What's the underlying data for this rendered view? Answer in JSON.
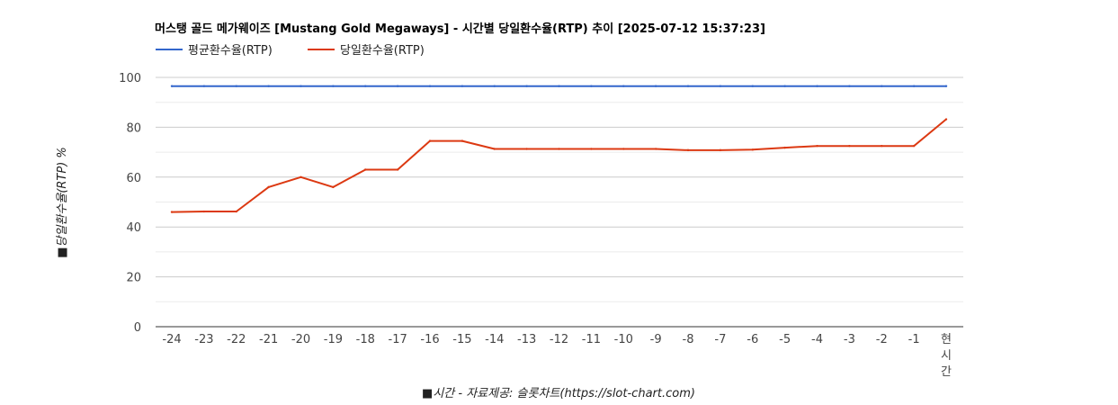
{
  "chart_data": {
    "type": "line",
    "title": "머스탱 골드 메가웨이즈 [Mustang Gold Megaways] - 시간별 당일환수율(RTP) 추이 [2025-07-12 15:37:23]",
    "xlabel": "■시간 - 자료제공: 슬롯차트(https://slot-chart.com)",
    "ylabel": "■당일환수율(RTP) %",
    "ylim": [
      0,
      100
    ],
    "yticks": [
      "0",
      "20",
      "40",
      "60",
      "80",
      "100"
    ],
    "categories": [
      "-24",
      "-23",
      "-22",
      "-21",
      "-20",
      "-19",
      "-18",
      "-17",
      "-16",
      "-15",
      "-14",
      "-13",
      "-12",
      "-11",
      "-10",
      "-9",
      "-8",
      "-7",
      "-6",
      "-5",
      "-4",
      "-3",
      "-2",
      "-1",
      "현시간"
    ],
    "series": [
      {
        "name": "평균환수율(RTP)",
        "color": "#3366cc",
        "values": [
          96.5,
          96.5,
          96.5,
          96.5,
          96.5,
          96.5,
          96.5,
          96.5,
          96.5,
          96.5,
          96.5,
          96.5,
          96.5,
          96.5,
          96.5,
          96.5,
          96.5,
          96.5,
          96.5,
          96.5,
          96.5,
          96.5,
          96.5,
          96.5,
          96.5
        ]
      },
      {
        "name": "당일환수율(RTP)",
        "color": "#dc3912",
        "values": [
          46,
          46.2,
          46.2,
          56,
          60,
          56,
          63,
          63,
          74.5,
          74.5,
          71.3,
          71.3,
          71.3,
          71.3,
          71.3,
          71.3,
          70.8,
          70.8,
          71,
          71.8,
          72.5,
          72.5,
          72.5,
          72.5,
          83.2
        ]
      }
    ],
    "grid": true,
    "legend": "top-left"
  }
}
